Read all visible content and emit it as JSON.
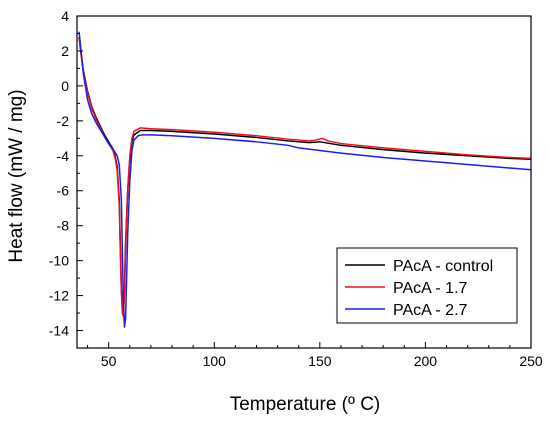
{
  "chart_data": {
    "type": "line",
    "title": "",
    "xlabel": "Temperature (º C)",
    "ylabel": "Heat flow (mW / mg)",
    "xlim": [
      35,
      250
    ],
    "ylim": [
      -15,
      4
    ],
    "x_ticks": [
      50,
      100,
      150,
      200,
      250
    ],
    "y_ticks": [
      4,
      2,
      0,
      -2,
      -4,
      -6,
      -8,
      -10,
      -12,
      -14
    ],
    "grid": false,
    "legend_position": "bottom-right",
    "series": [
      {
        "name": "PAcA - control",
        "color": "#000000",
        "points": [
          [
            36,
            2.8
          ],
          [
            37,
            1.8
          ],
          [
            38,
            0.9
          ],
          [
            40,
            -0.3
          ],
          [
            42,
            -1.2
          ],
          [
            44,
            -1.8
          ],
          [
            46,
            -2.3
          ],
          [
            48,
            -2.8
          ],
          [
            50,
            -3.2
          ],
          [
            52,
            -3.6
          ],
          [
            53,
            -4.0
          ],
          [
            54,
            -4.6
          ],
          [
            55,
            -6.5
          ],
          [
            55.5,
            -9.0
          ],
          [
            56,
            -11.5
          ],
          [
            56.5,
            -12.8
          ],
          [
            57,
            -13.0
          ],
          [
            57.5,
            -11.5
          ],
          [
            58,
            -9.0
          ],
          [
            59,
            -6.0
          ],
          [
            60,
            -4.2
          ],
          [
            61,
            -3.2
          ],
          [
            62,
            -2.8
          ],
          [
            65,
            -2.55
          ],
          [
            70,
            -2.55
          ],
          [
            80,
            -2.6
          ],
          [
            100,
            -2.75
          ],
          [
            120,
            -2.95
          ],
          [
            135,
            -3.15
          ],
          [
            145,
            -3.25
          ],
          [
            150,
            -3.2
          ],
          [
            155,
            -3.3
          ],
          [
            160,
            -3.4
          ],
          [
            180,
            -3.65
          ],
          [
            200,
            -3.85
          ],
          [
            220,
            -4.0
          ],
          [
            240,
            -4.15
          ],
          [
            250,
            -4.2
          ]
        ]
      },
      {
        "name": "PAcA - 1.7",
        "color": "#e8141a",
        "points": [
          [
            36,
            2.7
          ],
          [
            37,
            1.7
          ],
          [
            38,
            0.8
          ],
          [
            40,
            -0.4
          ],
          [
            42,
            -1.3
          ],
          [
            44,
            -1.9
          ],
          [
            46,
            -2.4
          ],
          [
            48,
            -2.9
          ],
          [
            50,
            -3.3
          ],
          [
            52,
            -3.7
          ],
          [
            53,
            -4.1
          ],
          [
            54,
            -4.8
          ],
          [
            55,
            -6.8
          ],
          [
            55.5,
            -9.5
          ],
          [
            56,
            -11.8
          ],
          [
            56.5,
            -13.0
          ],
          [
            57,
            -13.2
          ],
          [
            57.5,
            -11.8
          ],
          [
            58,
            -9.3
          ],
          [
            59,
            -6.0
          ],
          [
            60,
            -4.0
          ],
          [
            61,
            -3.0
          ],
          [
            62,
            -2.6
          ],
          [
            65,
            -2.4
          ],
          [
            70,
            -2.45
          ],
          [
            80,
            -2.5
          ],
          [
            100,
            -2.65
          ],
          [
            120,
            -2.85
          ],
          [
            135,
            -3.05
          ],
          [
            145,
            -3.15
          ],
          [
            148,
            -3.1
          ],
          [
            151,
            -3.0
          ],
          [
            154,
            -3.15
          ],
          [
            160,
            -3.3
          ],
          [
            180,
            -3.55
          ],
          [
            200,
            -3.75
          ],
          [
            220,
            -3.95
          ],
          [
            240,
            -4.1
          ],
          [
            250,
            -4.15
          ]
        ]
      },
      {
        "name": "PAcA - 2.7",
        "color": "#1c1cf0",
        "points": [
          [
            36,
            3.1
          ],
          [
            37,
            1.9
          ],
          [
            38,
            0.7
          ],
          [
            40,
            -0.8
          ],
          [
            42,
            -1.6
          ],
          [
            44,
            -2.1
          ],
          [
            46,
            -2.5
          ],
          [
            48,
            -2.9
          ],
          [
            50,
            -3.3
          ],
          [
            52,
            -3.6
          ],
          [
            54,
            -4.0
          ],
          [
            55,
            -4.5
          ],
          [
            56,
            -6.5
          ],
          [
            56.5,
            -9.5
          ],
          [
            57,
            -12.5
          ],
          [
            57.5,
            -13.8
          ],
          [
            58,
            -13.3
          ],
          [
            58.5,
            -11.0
          ],
          [
            59,
            -8.5
          ],
          [
            60,
            -5.5
          ],
          [
            61,
            -3.7
          ],
          [
            62,
            -3.1
          ],
          [
            64,
            -2.85
          ],
          [
            66,
            -2.8
          ],
          [
            70,
            -2.8
          ],
          [
            80,
            -2.85
          ],
          [
            100,
            -3.0
          ],
          [
            120,
            -3.2
          ],
          [
            135,
            -3.4
          ],
          [
            140,
            -3.55
          ],
          [
            160,
            -3.85
          ],
          [
            180,
            -4.1
          ],
          [
            200,
            -4.3
          ],
          [
            220,
            -4.5
          ],
          [
            240,
            -4.7
          ],
          [
            250,
            -4.8
          ]
        ]
      }
    ]
  }
}
